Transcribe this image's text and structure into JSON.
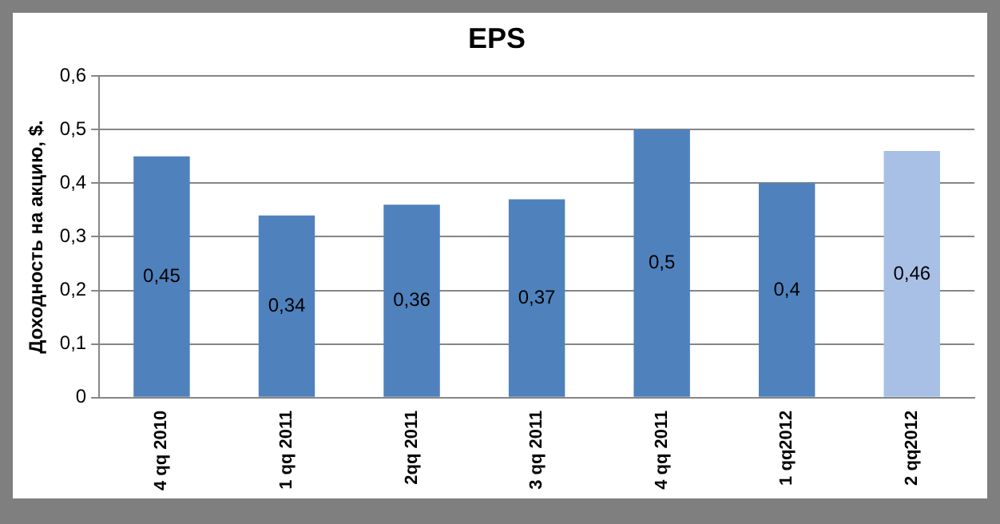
{
  "chart_data": {
    "type": "bar",
    "title": "EPS",
    "ylabel": "Доходность на акцию, $.",
    "categories": [
      "4 qq 2010",
      "1 qq 2011",
      "2qq 2011",
      "3 qq 2011",
      "4 qq 2011",
      "1 qq2012",
      "2 qq2012"
    ],
    "values": [
      0.45,
      0.34,
      0.36,
      0.37,
      0.5,
      0.4,
      0.46
    ],
    "colors": [
      "#4f81bd",
      "#4f81bd",
      "#4f81bd",
      "#4f81bd",
      "#4f81bd",
      "#4f81bd",
      "#a9c0e6"
    ],
    "value_labels": [
      "0,45",
      "0,34",
      "0,36",
      "0,37",
      "0,5",
      "0,4",
      "0,46"
    ],
    "ylim": [
      0,
      0.6
    ],
    "yticks": [
      {
        "value": 0,
        "label": "0"
      },
      {
        "value": 0.1,
        "label": "0,1"
      },
      {
        "value": 0.2,
        "label": "0,2"
      },
      {
        "value": 0.3,
        "label": "0,3"
      },
      {
        "value": 0.4,
        "label": "0,4"
      },
      {
        "value": 0.5,
        "label": "0,5"
      },
      {
        "value": 0.6,
        "label": "0,6"
      }
    ],
    "grid": "y",
    "legend": false
  }
}
